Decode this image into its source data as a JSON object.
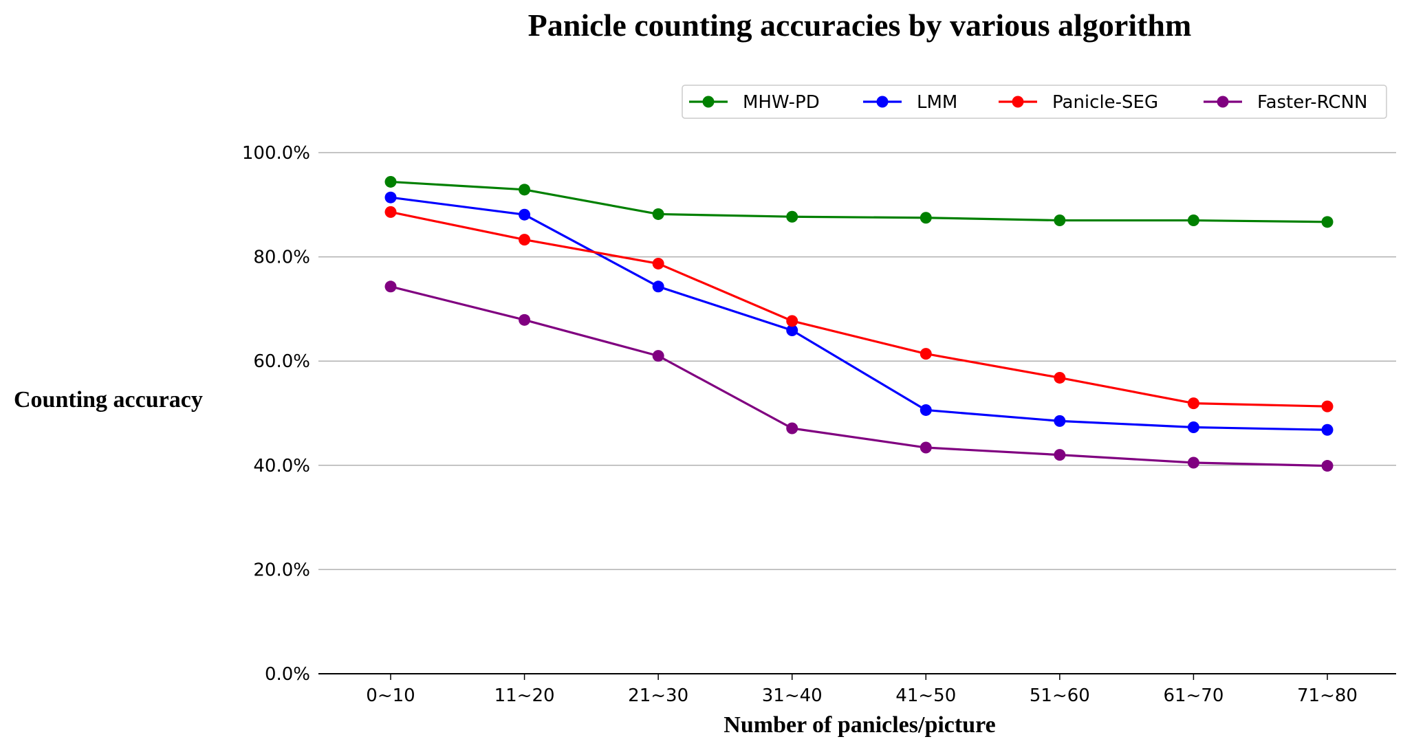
{
  "chart_data": {
    "type": "line",
    "title": "Panicle counting accuracies by various algorithm",
    "xlabel": "Number of panicles/picture",
    "ylabel": "Counting accuracy",
    "categories": [
      "0~10",
      "11~20",
      "21~30",
      "31~40",
      "41~50",
      "51~60",
      "61~70",
      "71~80"
    ],
    "ylim": [
      0,
      100
    ],
    "yticks": [
      0,
      20,
      40,
      60,
      80,
      100
    ],
    "ytick_labels": [
      "0.0%",
      "20.0%",
      "40.0%",
      "60.0%",
      "80.0%",
      "100.0%"
    ],
    "grid": "horizontal",
    "legend_position": "top-right",
    "series": [
      {
        "name": "MHW-PD",
        "color": "#008000",
        "values": [
          94.4,
          92.9,
          88.2,
          87.7,
          87.5,
          87.0,
          87.0,
          86.7
        ]
      },
      {
        "name": "LMM",
        "color": "#0000ff",
        "values": [
          91.4,
          88.1,
          74.3,
          65.9,
          50.6,
          48.5,
          47.3,
          46.8
        ]
      },
      {
        "name": "Panicle-SEG",
        "color": "#ff0000",
        "values": [
          88.6,
          83.3,
          78.7,
          67.7,
          61.4,
          56.8,
          51.9,
          51.3
        ]
      },
      {
        "name": "Faster-RCNN",
        "color": "#800080",
        "values": [
          74.3,
          67.9,
          61.0,
          47.1,
          43.4,
          42.0,
          40.5,
          39.9
        ]
      }
    ]
  }
}
